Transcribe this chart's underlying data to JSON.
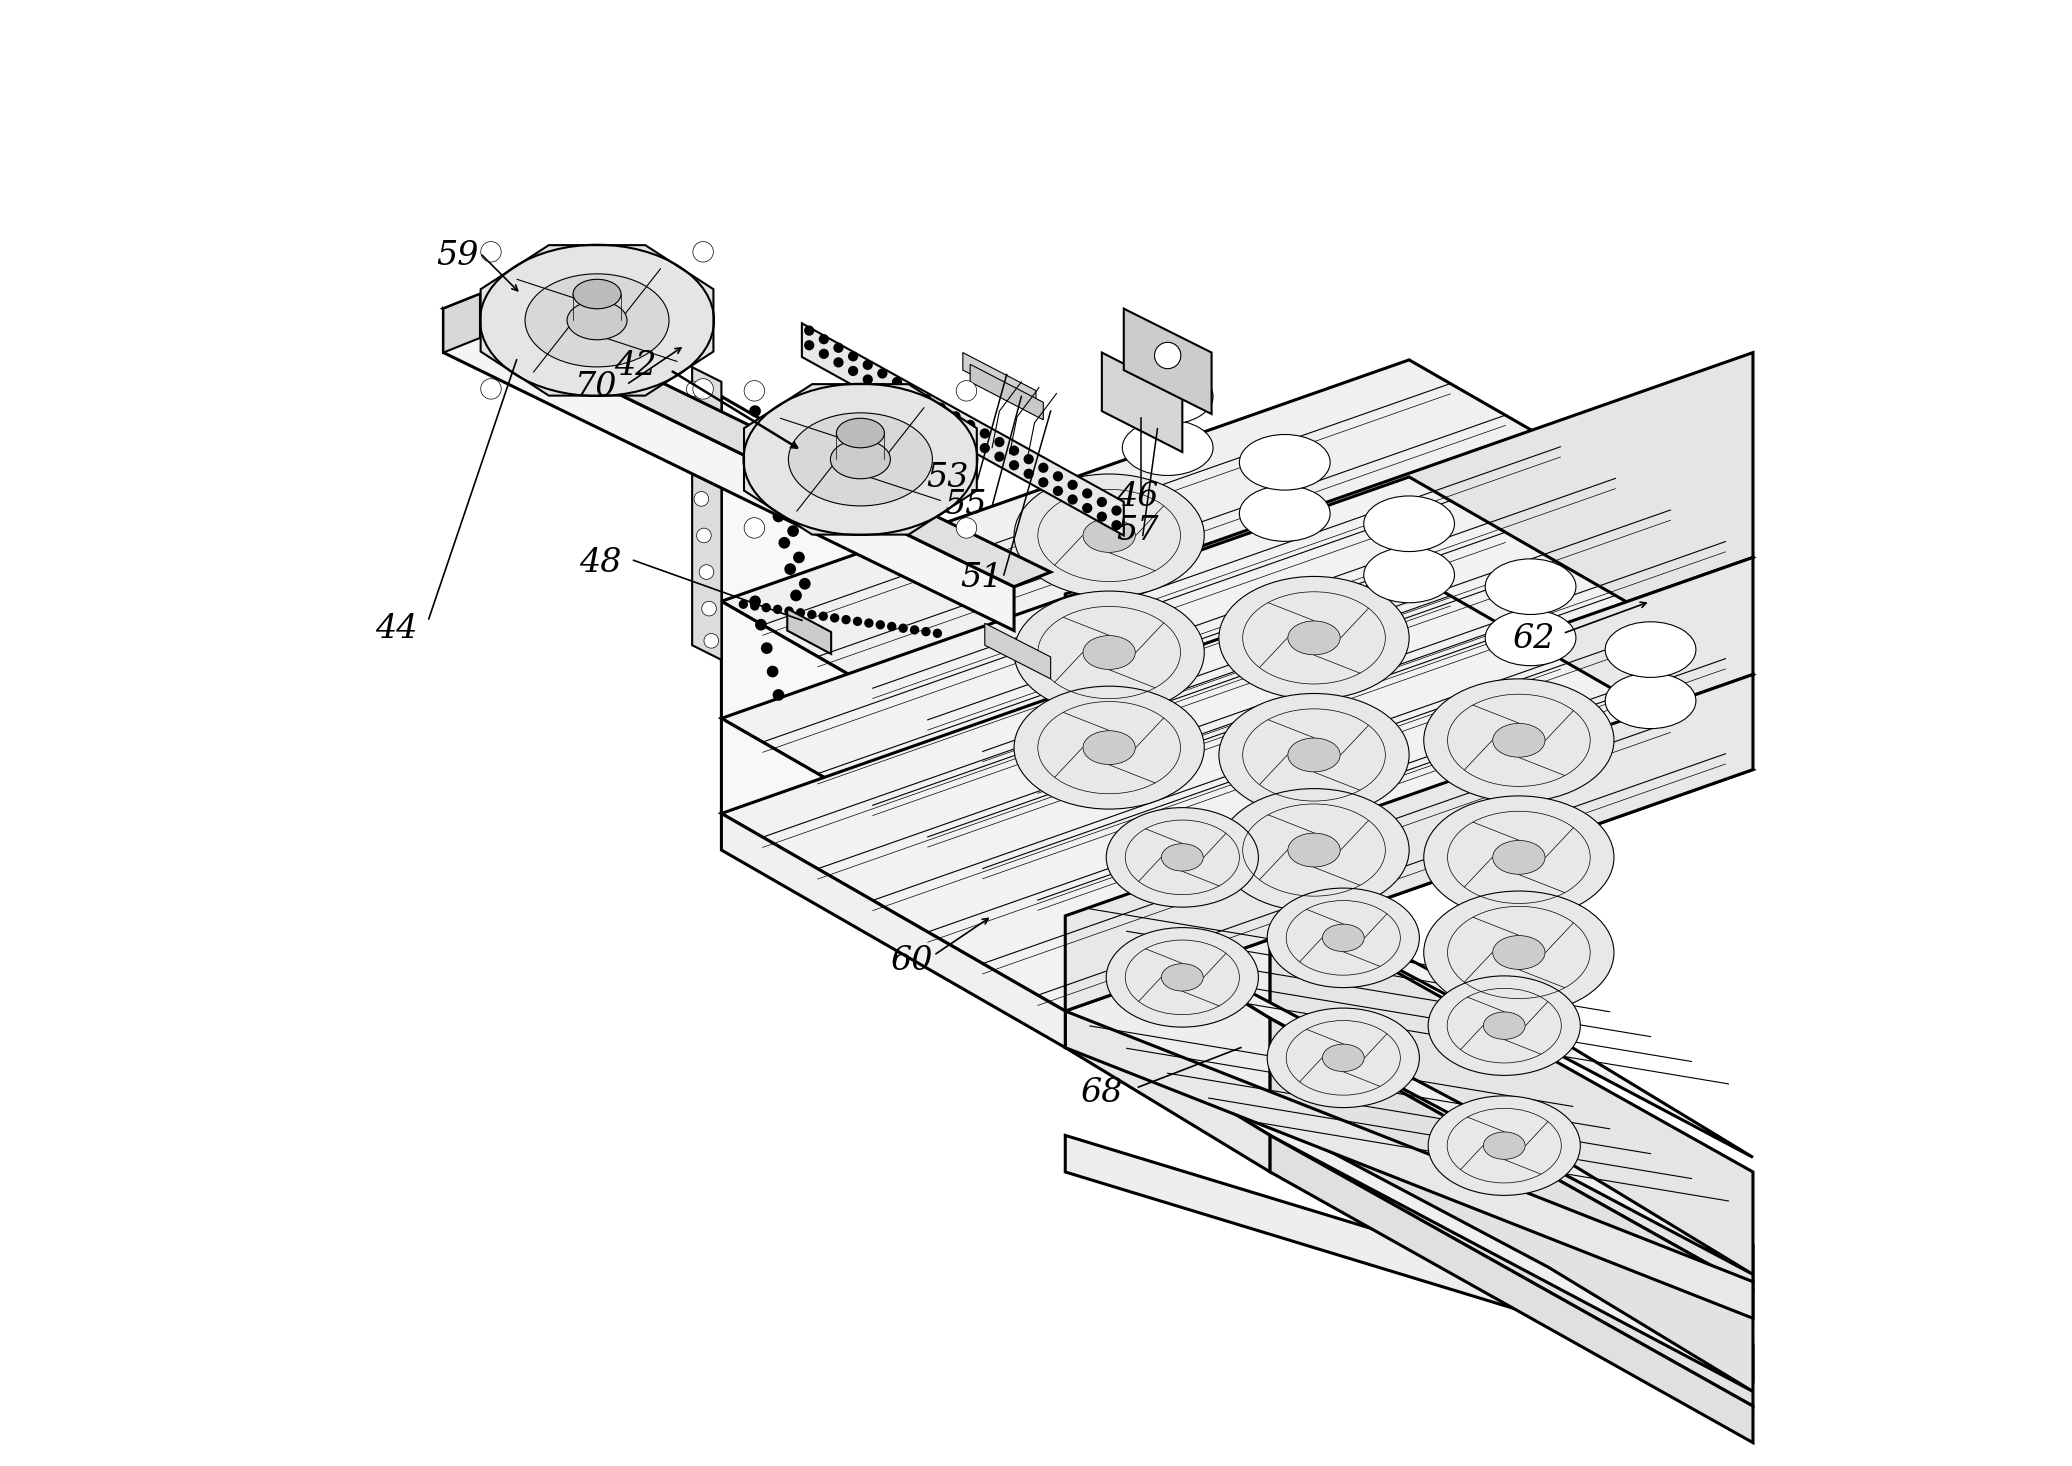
{
  "bg_color": "#ffffff",
  "line_color": "#000000",
  "fig_width": 20.72,
  "fig_height": 14.66,
  "label_fontsize": 24
}
